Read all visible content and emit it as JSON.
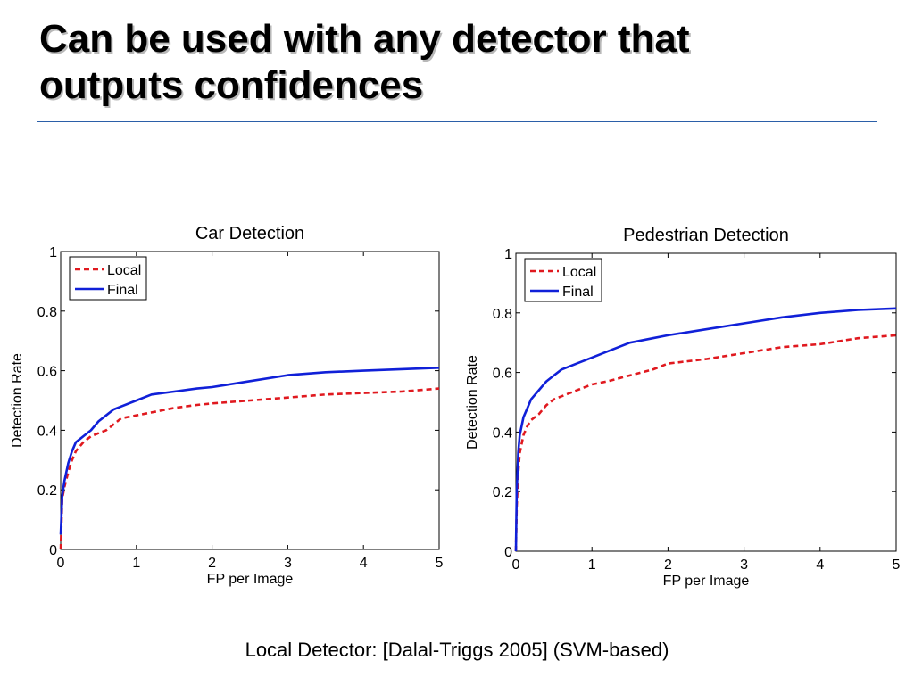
{
  "slide": {
    "title_line1": "Can be used with any detector that",
    "title_line2": "outputs confidences",
    "caption": "Local Detector: [Dalal-Triggs 2005] (SVM-based)"
  },
  "colors": {
    "local": "#e0191f",
    "final": "#1020d8",
    "rule": "#2b5fa8"
  },
  "chart_data": [
    {
      "type": "line",
      "title": "Car Detection",
      "xlabel": "FP per Image",
      "ylabel": "Detection Rate",
      "xlim": [
        0,
        5
      ],
      "ylim": [
        0,
        1
      ],
      "xticks": [
        "0",
        "1",
        "2",
        "3",
        "4",
        "5"
      ],
      "yticks": [
        "0",
        "0.2",
        "0.4",
        "0.6",
        "0.8",
        "1"
      ],
      "grid": false,
      "legend_position": "top-left",
      "series": [
        {
          "name": "Local",
          "style": "dashed",
          "color": "#e0191f",
          "x": [
            0,
            0.02,
            0.05,
            0.1,
            0.15,
            0.2,
            0.3,
            0.4,
            0.5,
            0.6,
            0.7,
            0.8,
            1.0,
            1.2,
            1.5,
            1.8,
            2.0,
            2.5,
            3.0,
            3.5,
            4.0,
            4.5,
            5.0
          ],
          "y": [
            0.0,
            0.17,
            0.21,
            0.26,
            0.3,
            0.33,
            0.36,
            0.38,
            0.39,
            0.4,
            0.42,
            0.44,
            0.45,
            0.46,
            0.475,
            0.485,
            0.49,
            0.5,
            0.51,
            0.52,
            0.525,
            0.53,
            0.54
          ]
        },
        {
          "name": "Final",
          "style": "solid",
          "color": "#1020d8",
          "x": [
            0,
            0.02,
            0.05,
            0.1,
            0.15,
            0.2,
            0.3,
            0.4,
            0.5,
            0.6,
            0.7,
            0.8,
            1.0,
            1.2,
            1.5,
            1.8,
            2.0,
            2.5,
            3.0,
            3.5,
            4.0,
            4.5,
            5.0
          ],
          "y": [
            0.05,
            0.18,
            0.23,
            0.29,
            0.33,
            0.36,
            0.38,
            0.4,
            0.43,
            0.45,
            0.47,
            0.48,
            0.5,
            0.52,
            0.53,
            0.54,
            0.545,
            0.565,
            0.585,
            0.595,
            0.6,
            0.605,
            0.61
          ]
        }
      ]
    },
    {
      "type": "line",
      "title": "Pedestrian Detection",
      "xlabel": "FP per Image",
      "ylabel": "Detection Rate",
      "xlim": [
        0,
        5
      ],
      "ylim": [
        0,
        1
      ],
      "xticks": [
        "0",
        "1",
        "2",
        "3",
        "4",
        "5"
      ],
      "yticks": [
        "0",
        "0.2",
        "0.4",
        "0.6",
        "0.8",
        "1"
      ],
      "grid": false,
      "legend_position": "top-left",
      "series": [
        {
          "name": "Local",
          "style": "dashed",
          "color": "#e0191f",
          "x": [
            0,
            0.01,
            0.03,
            0.05,
            0.1,
            0.15,
            0.2,
            0.3,
            0.4,
            0.5,
            0.6,
            0.8,
            1.0,
            1.2,
            1.5,
            1.8,
            2.0,
            2.5,
            3.0,
            3.5,
            4.0,
            4.5,
            5.0
          ],
          "y": [
            0.0,
            0.15,
            0.26,
            0.33,
            0.39,
            0.42,
            0.44,
            0.46,
            0.49,
            0.51,
            0.52,
            0.54,
            0.56,
            0.57,
            0.59,
            0.61,
            0.63,
            0.645,
            0.665,
            0.685,
            0.695,
            0.715,
            0.725
          ]
        },
        {
          "name": "Final",
          "style": "solid",
          "color": "#1020d8",
          "x": [
            0,
            0.01,
            0.03,
            0.05,
            0.1,
            0.15,
            0.2,
            0.3,
            0.4,
            0.5,
            0.6,
            0.8,
            1.0,
            1.2,
            1.5,
            1.8,
            2.0,
            2.5,
            3.0,
            3.5,
            4.0,
            4.5,
            5.0
          ],
          "y": [
            0.0,
            0.2,
            0.33,
            0.39,
            0.45,
            0.48,
            0.51,
            0.54,
            0.57,
            0.59,
            0.61,
            0.63,
            0.65,
            0.67,
            0.7,
            0.715,
            0.725,
            0.745,
            0.765,
            0.785,
            0.8,
            0.81,
            0.815
          ]
        }
      ]
    }
  ]
}
